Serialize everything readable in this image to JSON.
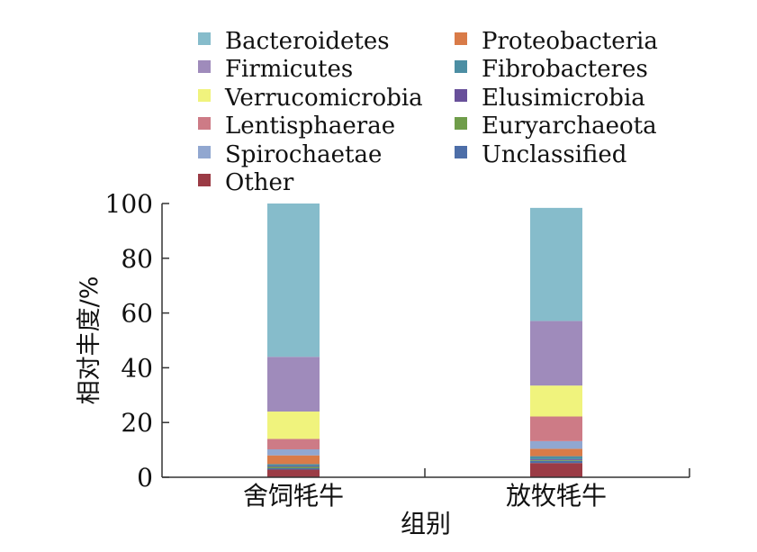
{
  "chart_data": {
    "type": "bar",
    "stacked": true,
    "title": "",
    "xlabel": "组别",
    "ylabel": "相对丰度/%",
    "ylim": [
      0,
      100
    ],
    "yticks": [
      0,
      20,
      40,
      60,
      80,
      100
    ],
    "grid": false,
    "legend_position": "top",
    "categories": [
      "舍饲牦牛",
      "放牧牦牛"
    ],
    "series": [
      {
        "name": "Other",
        "color": "#9b3b45",
        "values": [
          2.8,
          5.2
        ]
      },
      {
        "name": "Unclassified",
        "color": "#4d6ea8",
        "values": [
          0.5,
          0.8
        ]
      },
      {
        "name": "Euryarchaeota",
        "color": "#6f9d4a",
        "values": [
          0.5,
          0.3
        ]
      },
      {
        "name": "Elusimicrobia",
        "color": "#68509a",
        "values": [
          0.3,
          0.3
        ]
      },
      {
        "name": "Fibrobacteres",
        "color": "#4c8ea3",
        "values": [
          0.7,
          1.1
        ]
      },
      {
        "name": "Proteobacteria",
        "color": "#d97b48",
        "values": [
          3.2,
          2.7
        ]
      },
      {
        "name": "Spirochaetae",
        "color": "#91a7d0",
        "values": [
          2.2,
          2.8
        ]
      },
      {
        "name": "Lentisphaerae",
        "color": "#cd7b86",
        "values": [
          3.8,
          9.0
        ]
      },
      {
        "name": "Verrucomicrobia",
        "color": "#f0f37d",
        "values": [
          10.0,
          11.3
        ]
      },
      {
        "name": "Firmicutes",
        "color": "#9f8bbb",
        "values": [
          20.0,
          23.6
        ]
      },
      {
        "name": "Bacteroidetes",
        "color": "#86bccb",
        "values": [
          56.0,
          41.3
        ]
      }
    ],
    "legend_order": [
      "Bacteroidetes",
      "Firmicutes",
      "Verrucomicrobia",
      "Lentisphaerae",
      "Spirochaetae",
      "Other",
      "Proteobacteria",
      "Fibrobacteres",
      "Elusimicrobia",
      "Euryarchaeota",
      "Unclassified"
    ]
  }
}
